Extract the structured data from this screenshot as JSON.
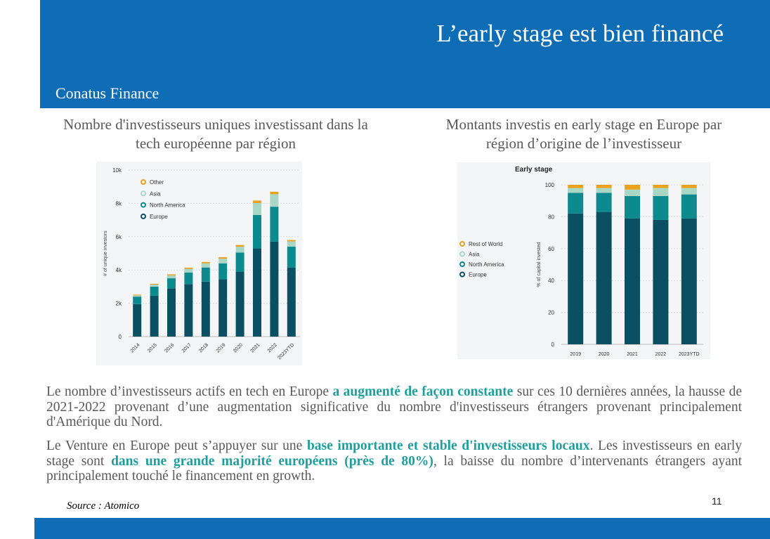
{
  "header": {
    "title": "L’early stage est bien financé",
    "brand": "Conatus Finance"
  },
  "left": {
    "caption_line1": "Nombre d'investisseurs uniques investissant dans la",
    "caption_line2": "tech européenne par région"
  },
  "right": {
    "caption_line1": "Montants investis en early stage en Europe par",
    "caption_line2": "région d’origine de l’investisseur"
  },
  "chart_data": [
    {
      "type": "bar",
      "stacked": true,
      "title": "",
      "xlabel": "",
      "ylabel": "# of unique investors",
      "ylim": [
        0,
        10000
      ],
      "yticks": [
        0,
        2000,
        4000,
        6000,
        8000,
        10000
      ],
      "ytick_labels": [
        "0",
        "2k",
        "4k",
        "6k",
        "8k",
        "10k"
      ],
      "grid": true,
      "legend_position": "top-left",
      "categories": [
        "2014",
        "2015",
        "2016",
        "2017",
        "2018",
        "2019",
        "2020",
        "2021",
        "2022",
        "2023YTD"
      ],
      "series": [
        {
          "name": "Europe",
          "color": "#0b4f62",
          "values": [
            1950,
            2450,
            2900,
            3150,
            3300,
            3450,
            3900,
            5300,
            5700,
            4150
          ]
        },
        {
          "name": "North America",
          "color": "#0c8a8e",
          "values": [
            450,
            550,
            600,
            700,
            850,
            950,
            1150,
            2000,
            2100,
            1250
          ]
        },
        {
          "name": "Asia",
          "color": "#a9d7c6",
          "values": [
            80,
            120,
            180,
            220,
            250,
            280,
            350,
            720,
            750,
            320
          ]
        },
        {
          "name": "Other",
          "color": "#e8a21c",
          "values": [
            40,
            50,
            60,
            70,
            80,
            90,
            100,
            150,
            150,
            80
          ]
        }
      ]
    },
    {
      "type": "bar",
      "stacked": true,
      "title": "Early stage",
      "xlabel": "",
      "ylabel": "% of capital invested",
      "ylim": [
        0,
        100
      ],
      "yticks": [
        0,
        20,
        40,
        60,
        80,
        100
      ],
      "ytick_labels": [
        "0",
        "20",
        "40",
        "60",
        "80",
        "100"
      ],
      "grid": true,
      "legend_position": "left",
      "categories": [
        "2019",
        "2020",
        "2021",
        "2022",
        "2023YTD"
      ],
      "series": [
        {
          "name": "Europe",
          "color": "#0b4f62",
          "values": [
            82,
            83,
            79,
            78,
            79
          ]
        },
        {
          "name": "North America",
          "color": "#0c8a8e",
          "values": [
            13,
            12,
            14,
            15,
            15
          ]
        },
        {
          "name": "Asia",
          "color": "#a9d7c6",
          "values": [
            3,
            3,
            4,
            5,
            4
          ]
        },
        {
          "name": "Rest of World",
          "color": "#e8a21c",
          "values": [
            2,
            2,
            3,
            2,
            2
          ]
        }
      ]
    }
  ],
  "paragraph1": {
    "part1": "Le nombre d’investisseurs actifs en tech en Europe ",
    "highlight1": "a augmenté de façon constante",
    "part2": " sur ces 10 dernières années, la hausse de 2021-2022 provenant d’une augmentation significative du nombre d'investisseurs étrangers provenant principalement d'Amérique du Nord."
  },
  "paragraph2": {
    "part1": "Le Venture en Europe peut s’appuyer sur une ",
    "highlight1": "base importante et stable d'investisseurs locaux",
    "part2": ". Les investisseurs en early stage sont ",
    "highlight2": "dans une grande majorité européens (près de 80%)",
    "part3": ", la baisse du nombre d’intervenants étrangers ayant principalement touché le financement en growth."
  },
  "footer": {
    "source": "Source : Atomico",
    "page_number": "11"
  },
  "colors": {
    "brand_blue": "#0f6db6",
    "highlight": "#1f9e9e"
  }
}
